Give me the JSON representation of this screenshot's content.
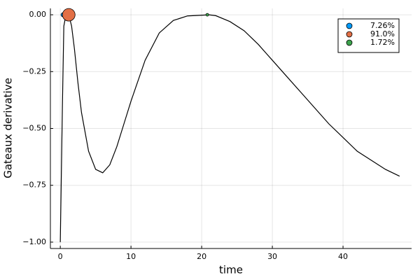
{
  "chart_data": {
    "type": "line",
    "xlabel": "time",
    "ylabel": "Gateaux derivative",
    "xlim": [
      -1.4,
      49.7
    ],
    "ylim": [
      -1.028,
      0.028
    ],
    "xticks": [
      0,
      10,
      20,
      30,
      40
    ],
    "yticks": [
      {
        "value": 0,
        "label": "0.00"
      },
      {
        "value": -0.25,
        "label": "−0.25"
      },
      {
        "value": -0.5,
        "label": "−0.50"
      },
      {
        "value": -0.75,
        "label": "−0.75"
      },
      {
        "value": -1,
        "label": "−1.00"
      }
    ],
    "grid": true,
    "legend": "top-right",
    "series": [
      {
        "type": "line",
        "color": "#000000",
        "x": [
          0,
          0.3,
          0.5,
          0.8,
          1.2,
          1.6,
          2,
          2.5,
          3,
          4,
          5,
          6,
          7,
          8,
          9,
          10,
          12,
          14,
          16,
          18,
          20,
          21,
          22,
          24,
          26,
          28,
          30,
          32,
          34,
          36,
          38,
          40,
          42,
          44,
          46,
          48
        ],
        "values": [
          -1.0,
          -0.4,
          -0.05,
          0,
          0,
          -0.05,
          -0.15,
          -0.3,
          -0.43,
          -0.6,
          -0.68,
          -0.695,
          -0.66,
          -0.58,
          -0.48,
          -0.38,
          -0.2,
          -0.08,
          -0.025,
          -0.005,
          -0.002,
          0,
          -0.004,
          -0.03,
          -0.07,
          -0.13,
          -0.2,
          -0.27,
          -0.34,
          -0.41,
          -0.48,
          -0.54,
          -0.6,
          -0.64,
          -0.68,
          -0.71
        ]
      },
      {
        "type": "scatter",
        "name": "7.26%",
        "color": "#009af9",
        "x": [
          0.4
        ],
        "values": [
          0
        ],
        "marker_size": 3
      },
      {
        "type": "scatter",
        "name": "91.0%",
        "color": "#e26f46",
        "x": [
          1.2
        ],
        "values": [
          0
        ],
        "marker_size": 9
      },
      {
        "type": "scatter",
        "name": "1.72%",
        "color": "#3da44d",
        "x": [
          20.8
        ],
        "values": [
          0
        ],
        "marker_size": 2
      }
    ]
  }
}
